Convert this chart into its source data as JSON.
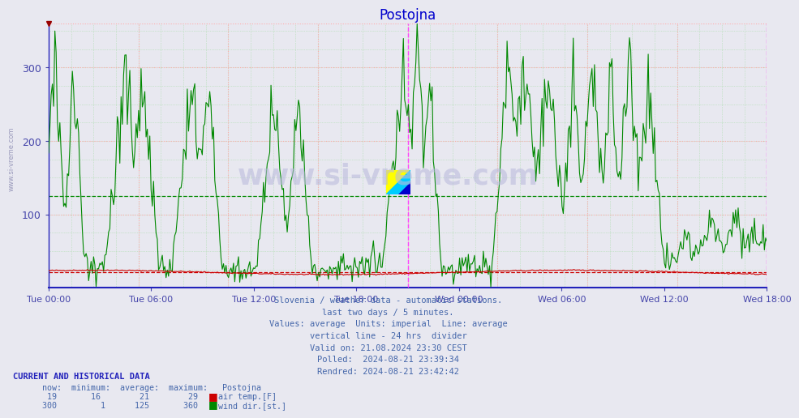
{
  "title": "Postojna",
  "title_color": "#0000cc",
  "bg_color": "#e8e8f0",
  "grid_h_color": "#ffaaaa",
  "grid_v_color": "#aaddaa",
  "air_temp_color": "#cc0000",
  "wind_dir_color": "#008800",
  "vline_color": "#ff44ff",
  "xticklabels": [
    "Tue 00:00",
    "Tue 06:00",
    "Tue 12:00",
    "Tue 18:00",
    "Wed 00:00",
    "Wed 06:00",
    "Wed 12:00",
    "Wed 18:00"
  ],
  "yticks": [
    100,
    200,
    300
  ],
  "ylim": [
    0,
    360
  ],
  "tick_color": "#4444aa",
  "air_temp_avg": 21,
  "air_temp_min": 16,
  "air_temp_max": 29,
  "air_temp_now": 19,
  "wind_dir_avg": 125,
  "wind_dir_min": 1,
  "wind_dir_max": 360,
  "wind_dir_now": 300,
  "n_points": 576,
  "info_lines": [
    "Slovenia / weather data - automatic stations.",
    "last two days / 5 minutes.",
    "Values: average  Units: imperial  Line: average",
    "vertical line - 24 hrs  divider",
    "Valid on: 21.08.2024 23:30 CEST",
    "Polled:  2024-08-21 23:39:34",
    "Rendred: 2024-08-21 23:42:42"
  ],
  "info_color": "#4466aa",
  "watermark": "www.si-vreme.com"
}
